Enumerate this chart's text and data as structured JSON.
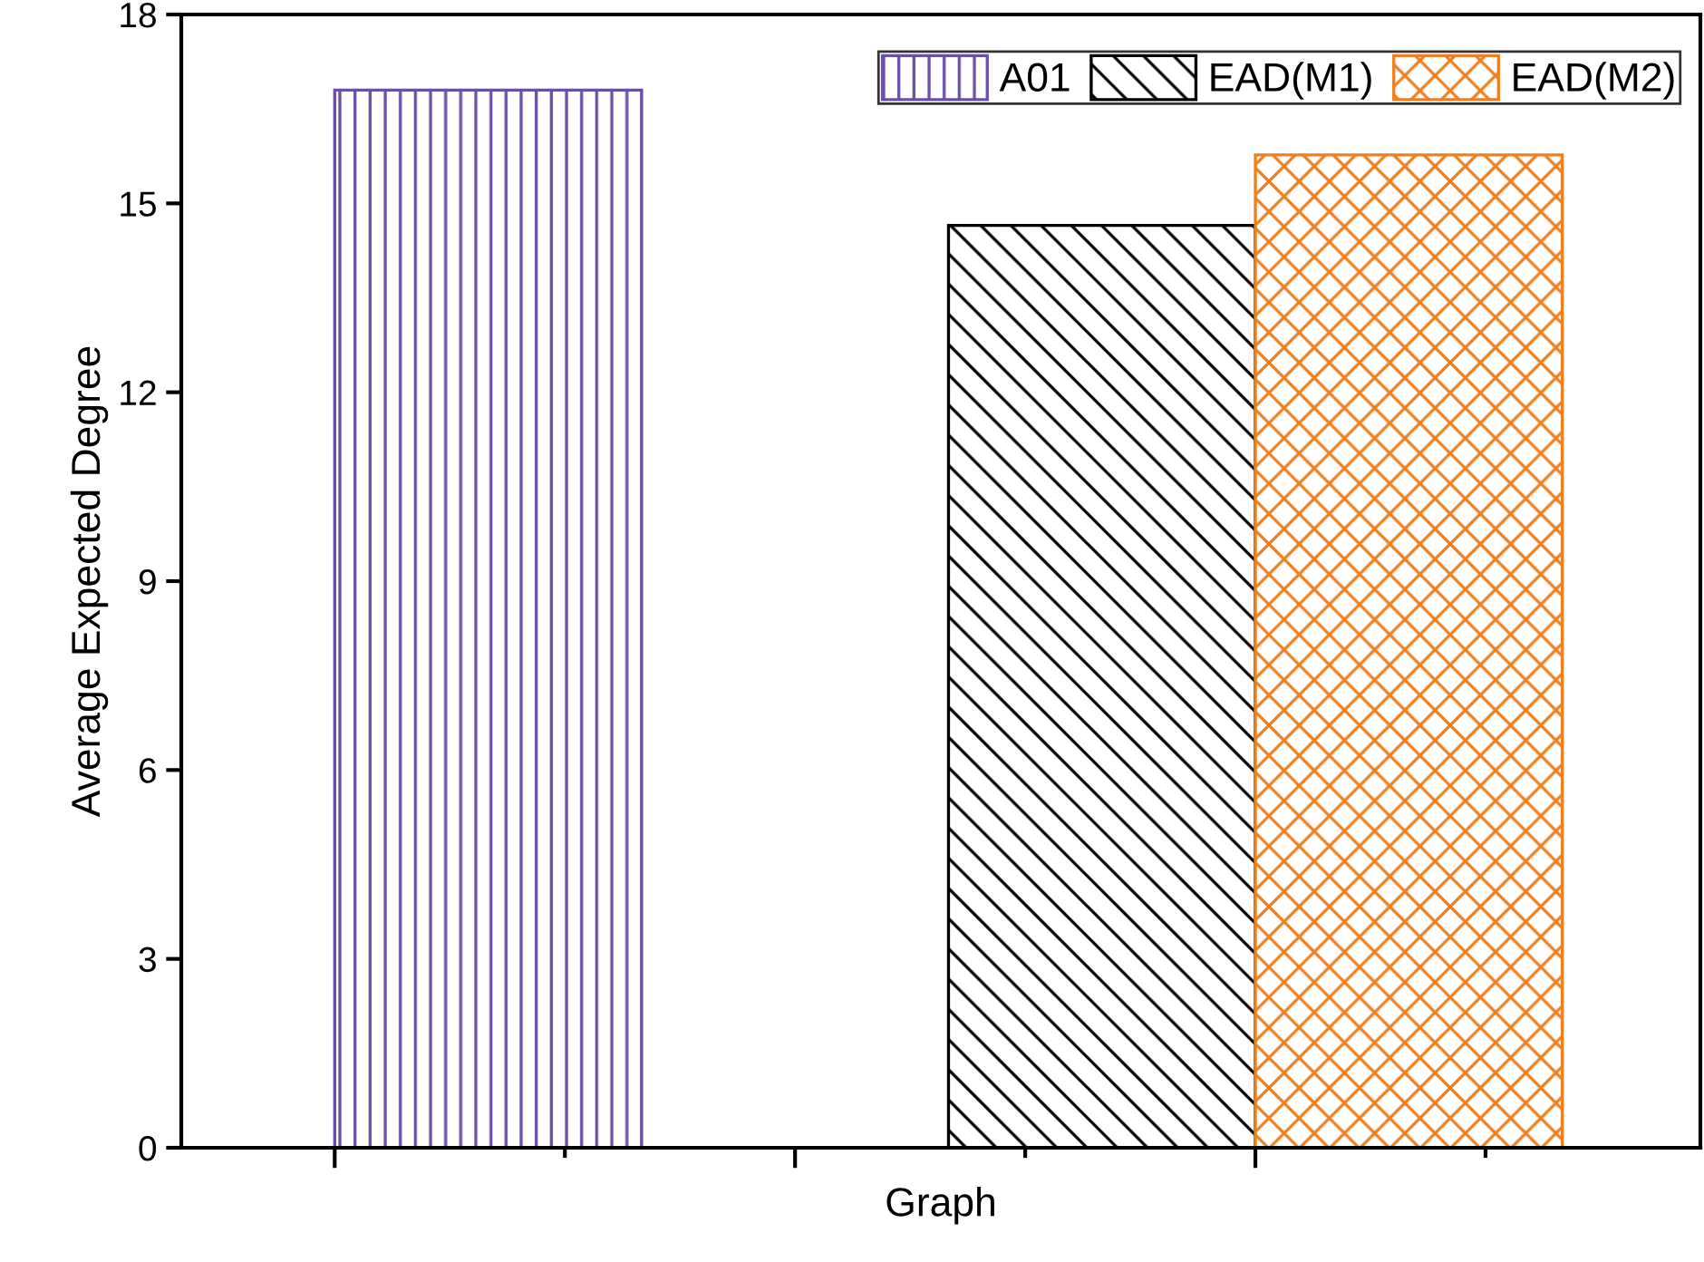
{
  "chart_data": {
    "type": "bar",
    "xlabel": "Graph",
    "ylabel": "Average Expected Degree",
    "categories": [
      null,
      null,
      null,
      null
    ],
    "series": [
      {
        "name": "A01",
        "color": "#6a4fa8",
        "values": [
          16.8,
          null,
          null,
          null
        ]
      },
      {
        "name": "EAD(M1)",
        "color": "#000000",
        "values": [
          null,
          null,
          14.65,
          null
        ]
      },
      {
        "name": "EAD(M2)",
        "color": "#f07f20",
        "values": [
          null,
          null,
          null,
          15.77
        ]
      }
    ],
    "ylim": [
      0,
      18
    ],
    "yticks": [
      0,
      3,
      6,
      9,
      12,
      15,
      18
    ],
    "grid": false,
    "legend": "top right"
  }
}
